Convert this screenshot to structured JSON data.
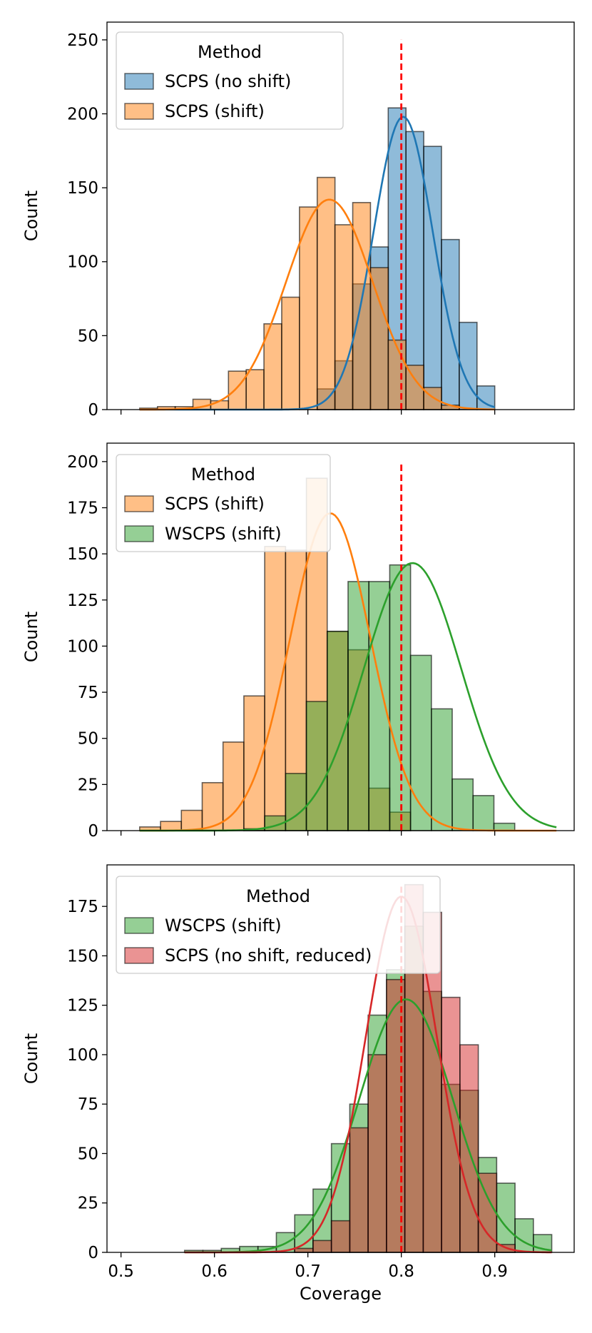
{
  "chart_data": [
    {
      "type": "bar",
      "xlim": [
        0.485,
        0.985
      ],
      "ylim": [
        0,
        262
      ],
      "yticks": [
        0,
        50,
        100,
        150,
        200,
        250
      ],
      "xticks": [
        0.5,
        0.6,
        0.7,
        0.8,
        0.9
      ],
      "xtick_labels_visible": false,
      "xlabel": "",
      "ylabel": "Count",
      "vline": {
        "x": 0.8,
        "y_max": 250,
        "color": "#ff0000"
      },
      "legend": {
        "title": "Method",
        "location": "upper-left",
        "entries": [
          "SCPS (no shift)",
          "SCPS (shift)"
        ]
      },
      "series": [
        {
          "name": "SCPS (no shift)",
          "color": "#1f77b4",
          "bin_start": 0.52,
          "bin_width": 0.019,
          "values": [
            0,
            0,
            0,
            0,
            0,
            0,
            0,
            0,
            0,
            0,
            14,
            33,
            85,
            110,
            204,
            188,
            178,
            115,
            59,
            16
          ],
          "kde": {
            "mean": 0.802,
            "sd": 0.0317,
            "peak": 198
          }
        },
        {
          "name": "SCPS (shift)",
          "color": "#ff7f0e",
          "bin_start": 0.52,
          "bin_width": 0.019,
          "values": [
            1,
            2,
            2,
            7,
            6,
            26,
            27,
            58,
            76,
            137,
            157,
            125,
            140,
            96,
            47,
            30,
            15,
            3,
            0,
            0
          ],
          "kde": {
            "mean": 0.723,
            "sd": 0.0465,
            "peak": 142
          }
        }
      ]
    },
    {
      "type": "bar",
      "xlim": [
        0.485,
        0.985
      ],
      "ylim": [
        0,
        210
      ],
      "yticks": [
        0,
        25,
        50,
        75,
        100,
        125,
        150,
        175,
        200
      ],
      "xticks": [
        0.5,
        0.6,
        0.7,
        0.8,
        0.9
      ],
      "xtick_labels_visible": false,
      "xlabel": "",
      "ylabel": "Count",
      "vline": {
        "x": 0.8,
        "y_max": 200,
        "color": "#ff0000"
      },
      "legend": {
        "title": "Method",
        "location": "upper-left",
        "entries": [
          "SCPS (shift)",
          "WSCPS (shift)"
        ]
      },
      "series": [
        {
          "name": "SCPS (shift)",
          "color": "#ff7f0e",
          "bin_start": 0.52,
          "bin_width": 0.0223,
          "values": [
            2,
            5,
            11,
            26,
            48,
            73,
            154,
            152,
            191,
            108,
            98,
            23,
            10,
            0,
            0,
            0,
            0,
            0,
            0,
            0
          ],
          "kde": {
            "mean": 0.724,
            "sd": 0.043,
            "peak": 172
          }
        },
        {
          "name": "WSCPS (shift)",
          "color": "#2ca02c",
          "bin_start": 0.52,
          "bin_width": 0.0223,
          "values": [
            0,
            0,
            0,
            0,
            0,
            1,
            8,
            31,
            70,
            108,
            135,
            135,
            144,
            95,
            66,
            28,
            19,
            4,
            0,
            0
          ],
          "kde": {
            "mean": 0.812,
            "sd": 0.052,
            "peak": 145
          }
        }
      ]
    },
    {
      "type": "bar",
      "xlim": [
        0.485,
        0.985
      ],
      "ylim": [
        0,
        196
      ],
      "yticks": [
        0,
        25,
        50,
        75,
        100,
        125,
        150,
        175
      ],
      "xticks": [
        0.5,
        0.6,
        0.7,
        0.8,
        0.9
      ],
      "xtick_labels_visible": true,
      "xlabel": "Coverage",
      "ylabel": "Count",
      "vline": {
        "x": 0.8,
        "y_max": 185,
        "color": "#ff0000"
      },
      "legend": {
        "title": "Method",
        "location": "upper-left",
        "entries": [
          "WSCPS (shift)",
          "SCPS (no shift, reduced)"
        ]
      },
      "series": [
        {
          "name": "WSCPS (shift)",
          "color": "#2ca02c",
          "bin_start": 0.568,
          "bin_width": 0.01965,
          "values": [
            1,
            1,
            2,
            3,
            3,
            10,
            19,
            32,
            55,
            75,
            120,
            143,
            165,
            132,
            85,
            82,
            48,
            35,
            17,
            9
          ],
          "kde": {
            "mean": 0.805,
            "sd": 0.05,
            "peak": 128
          }
        },
        {
          "name": "SCPS (no shift, reduced)",
          "color": "#d62728",
          "bin_start": 0.568,
          "bin_width": 0.01965,
          "values": [
            0,
            0,
            0,
            0,
            0,
            0,
            2,
            6,
            16,
            63,
            100,
            138,
            186,
            172,
            129,
            105,
            40,
            4,
            0,
            0
          ],
          "kde": {
            "mean": 0.8,
            "sd": 0.038,
            "peak": 180
          }
        }
      ]
    }
  ]
}
